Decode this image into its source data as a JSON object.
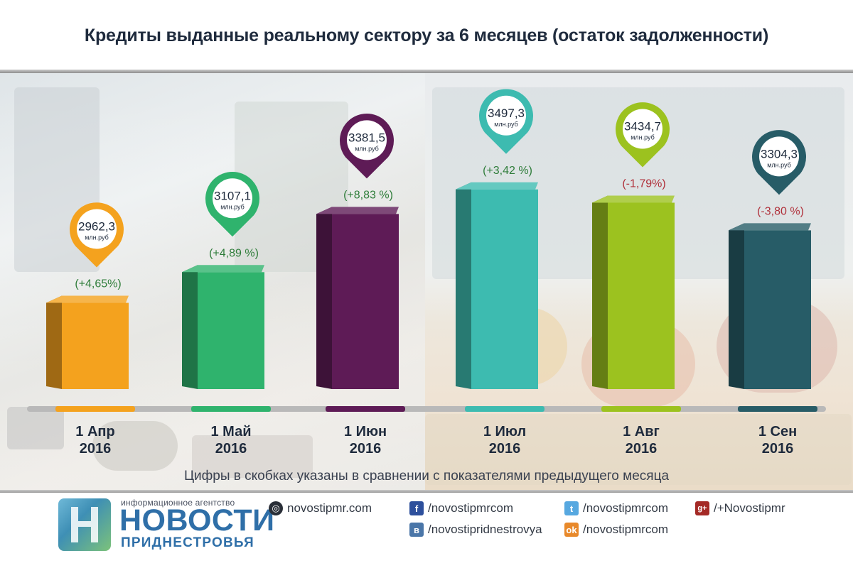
{
  "title": "Кредиты выданные реальному сектору за 6 месяцев (остаток задолженности)",
  "note": "Цифры в скобках указаны в сравнении с показателями предыдущего месяца",
  "chart_data": {
    "type": "bar",
    "title": "Кредиты выданные реальному сектору за 6 месяцев (остаток задолженности)",
    "unit": "млн.руб",
    "categories": [
      {
        "line1": "1 Апр",
        "line2": "2016"
      },
      {
        "line1": "1 Май",
        "line2": "2016"
      },
      {
        "line1": "1 Июн",
        "line2": "2016"
      },
      {
        "line1": "1 Июл",
        "line2": "2016"
      },
      {
        "line1": "1 Авг",
        "line2": "2016"
      },
      {
        "line1": "1 Сен",
        "line2": "2016"
      }
    ],
    "values": [
      2962.3,
      3107.1,
      3381.5,
      3497.3,
      3434.7,
      3304.3
    ],
    "value_labels": [
      "2962,3",
      "3107,1",
      "3381,5",
      "3497,3",
      "3434,7",
      "3304,3"
    ],
    "changes": [
      "(+4,65%)",
      "(+4,89 %)",
      "(+8,83 %)",
      "(+3,42 %)",
      "(-1,79%)",
      "(-3,80 %)"
    ],
    "colors": [
      "#f4a21e",
      "#2fb36d",
      "#5e1b56",
      "#3dbbb0",
      "#9cc21f",
      "#275c67"
    ],
    "change_colors": [
      "#2f7d3a",
      "#2f7d3a",
      "#2f7d3a",
      "#2f7d3a",
      "#b0303a",
      "#b0303a"
    ]
  },
  "footer": {
    "brand_small": "информационное агентство",
    "brand_big": "НОВОСТИ",
    "brand_sub": "ПРИДНЕСТРОВЬЯ",
    "site": "novostipmr.com",
    "facebook": "/novostipmrcom",
    "twitter": "/novostipmrcom",
    "google": "/+Novostipmr",
    "vk": "/novostipridnestrovya",
    "ok": "/novostipmrcom",
    "icons": {
      "site": "globe-icon",
      "facebook": "facebook-icon",
      "twitter": "twitter-icon",
      "google": "google-plus-icon",
      "vk": "vk-icon",
      "ok": "odnoklassniki-icon"
    }
  }
}
